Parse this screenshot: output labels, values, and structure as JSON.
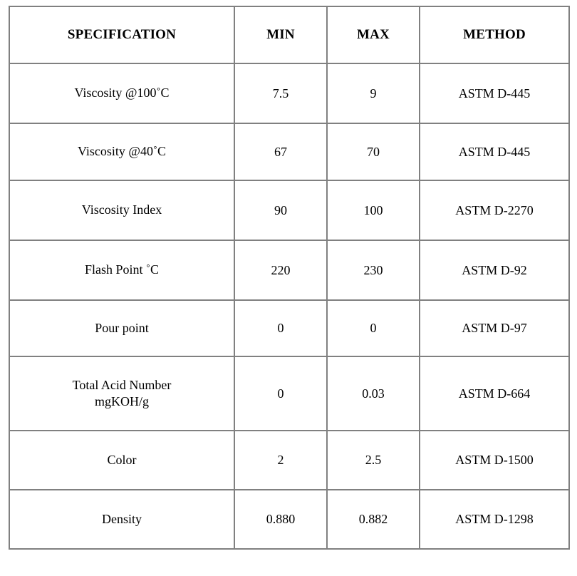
{
  "page": {
    "background_color": "#ffffff",
    "border_color": "#808080",
    "text_color": "#000000"
  },
  "table": {
    "columns": [
      "SPECIFICATION",
      "MIN",
      "MAX",
      "METHOD"
    ],
    "rows": [
      {
        "spec": "Viscosity @100˚C",
        "min": "7.5",
        "max": "9",
        "method": "ASTM D-445"
      },
      {
        "spec": "Viscosity @40˚C",
        "min": "67",
        "max": "70",
        "method": "ASTM D-445"
      },
      {
        "spec": "Viscosity Index",
        "min": "90",
        "max": "100",
        "method": "ASTM D-2270"
      },
      {
        "spec": "Flash Point ˚C",
        "min": "220",
        "max": "230",
        "method": "ASTM D-92"
      },
      {
        "spec": "Pour point",
        "min": "0",
        "max": "0",
        "method": "ASTM D-97"
      },
      {
        "spec": "Total Acid Number\nmgKOH/g",
        "min": "0",
        "max": "0.03",
        "method": "ASTM D-664"
      },
      {
        "spec": "Color",
        "min": "2",
        "max": "2.5",
        "method": "ASTM D-1500"
      },
      {
        "spec": "Density",
        "min": "0.880",
        "max": "0.882",
        "method": "ASTM D-1298"
      }
    ]
  }
}
